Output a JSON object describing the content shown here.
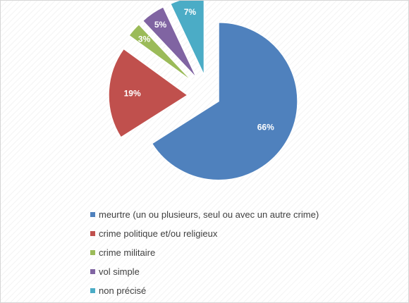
{
  "chart_data": {
    "type": "pie",
    "exploded": true,
    "slices": [
      {
        "label": "meurtre (un ou plusieurs, seul ou avec un autre crime)",
        "value": 66,
        "value_label": "66%",
        "color": "#4f81bd"
      },
      {
        "label": "crime politique et/ou religieux",
        "value": 19,
        "value_label": "19%",
        "color": "#c0504d"
      },
      {
        "label": "crime militaire",
        "value": 3,
        "value_label": "3%",
        "color": "#9bbb59"
      },
      {
        "label": "vol simple",
        "value": 5,
        "value_label": "5%",
        "color": "#8064a2"
      },
      {
        "label": "non précisé",
        "value": 7,
        "value_label": "7%",
        "color": "#4bacc6"
      }
    ],
    "legend_position": "bottom"
  }
}
